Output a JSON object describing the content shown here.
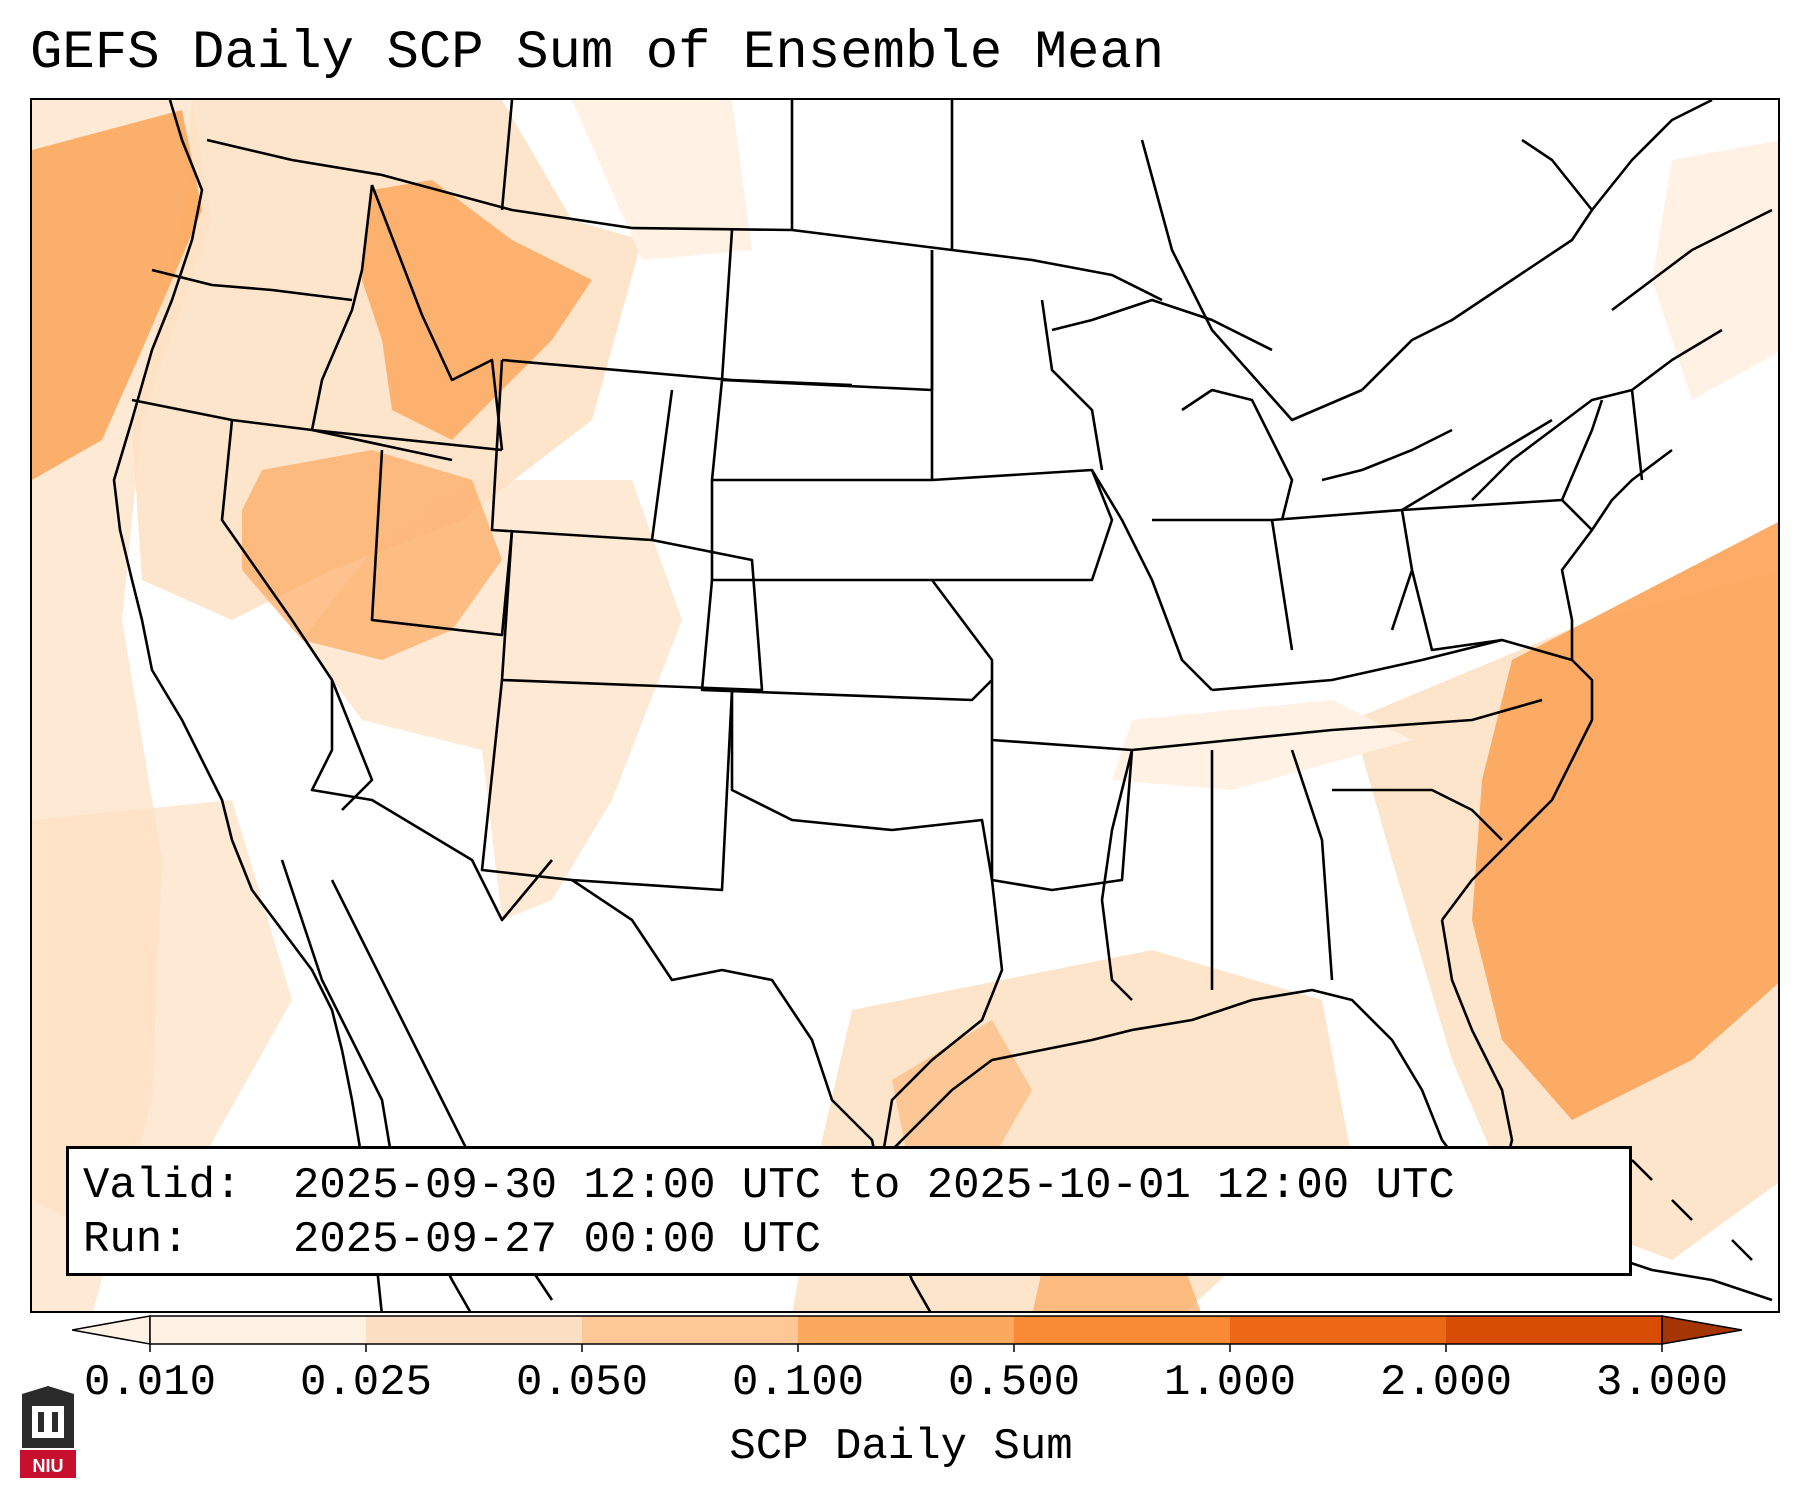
{
  "title": "GEFS Daily SCP Sum of Ensemble Mean",
  "info": {
    "valid_label": "Valid:",
    "valid_value": "2025-09-30 12:00 UTC to 2025-10-01 12:00 UTC",
    "run_label": "Run:",
    "run_value": "2025-09-27 00:00 UTC"
  },
  "colorbar": {
    "label": "SCP Daily Sum",
    "ticks": [
      "0.010",
      "0.025",
      "0.050",
      "0.100",
      "0.500",
      "1.000",
      "2.000",
      "3.000"
    ],
    "colors": [
      "#fff1e4",
      "#fde0c3",
      "#fdc895",
      "#fca85e",
      "#f98a36",
      "#ec6716",
      "#d74d04",
      "#a53604"
    ],
    "extend": "both"
  },
  "map": {
    "region": "Contiguous United States",
    "shading": [
      {
        "area": "Pacific off Washington/Oregon",
        "bin": "0.100"
      },
      {
        "area": "Idaho / western Montana",
        "bin": "0.100"
      },
      {
        "area": "Nevada / Utah",
        "bin": "0.100"
      },
      {
        "area": "Western Atlantic off Carolinas/Florida",
        "bin": "0.100"
      },
      {
        "area": "Gulf of Mexico",
        "bin": "0.050"
      },
      {
        "area": "Wyoming / Colorado / New Mexico",
        "bin": "0.025"
      },
      {
        "area": "Pacific off Baja California",
        "bin": "0.025"
      }
    ]
  },
  "logo": {
    "text": "NIU",
    "colors": [
      "#c8102e",
      "#2b2b2b"
    ]
  }
}
